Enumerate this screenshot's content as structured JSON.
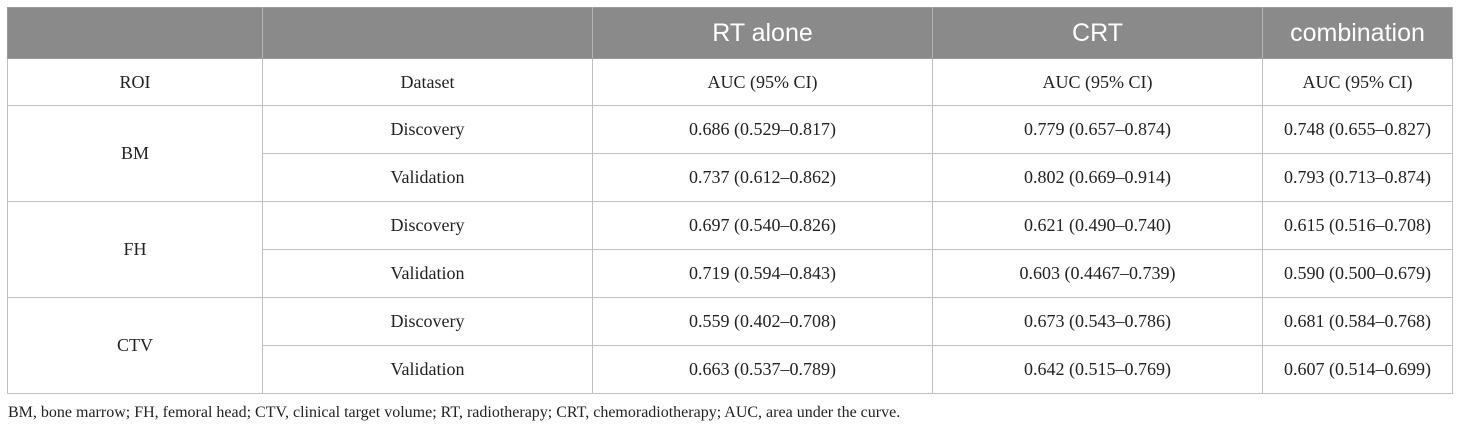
{
  "table": {
    "top_header": [
      "",
      "",
      "RT alone",
      "CRT",
      "combination"
    ],
    "sub_header": [
      "ROI",
      "Dataset",
      "AUC (95% CI)",
      "AUC (95% CI)",
      "AUC (95% CI)"
    ],
    "groups": [
      {
        "roi": "BM",
        "rows": [
          {
            "dataset": "Discovery",
            "rt_alone": "0.686 (0.529–0.817)",
            "crt": "0.779 (0.657–0.874)",
            "combination": "0.748 (0.655–0.827)"
          },
          {
            "dataset": "Validation",
            "rt_alone": "0.737 (0.612–0.862)",
            "crt": "0.802 (0.669–0.914)",
            "combination": "0.793 (0.713–0.874)"
          }
        ]
      },
      {
        "roi": "FH",
        "rows": [
          {
            "dataset": "Discovery",
            "rt_alone": "0.697 (0.540–0.826)",
            "crt": "0.621 (0.490–0.740)",
            "combination": "0.615 (0.516–0.708)"
          },
          {
            "dataset": "Validation",
            "rt_alone": "0.719 (0.594–0.843)",
            "crt": "0.603 (0.4467–0.739)",
            "combination": "0.590 (0.500–0.679)"
          }
        ]
      },
      {
        "roi": "CTV",
        "rows": [
          {
            "dataset": "Discovery",
            "rt_alone": "0.559 (0.402–0.708)",
            "crt": "0.673 (0.543–0.786)",
            "combination": "0.681 (0.584–0.768)"
          },
          {
            "dataset": "Validation",
            "rt_alone": "0.663 (0.537–0.789)",
            "crt": "0.642 (0.515–0.769)",
            "combination": "0.607 (0.514–0.699)"
          }
        ]
      }
    ]
  },
  "footnote": "BM, bone marrow; FH, femoral head; CTV, clinical target volume; RT, radiotherapy; CRT, chemoradiotherapy; AUC, area under the curve.",
  "colors": {
    "header_bg": "#8a8a8a",
    "header_text": "#ffffff",
    "border": "#bfbfbf",
    "text": "#222222"
  }
}
